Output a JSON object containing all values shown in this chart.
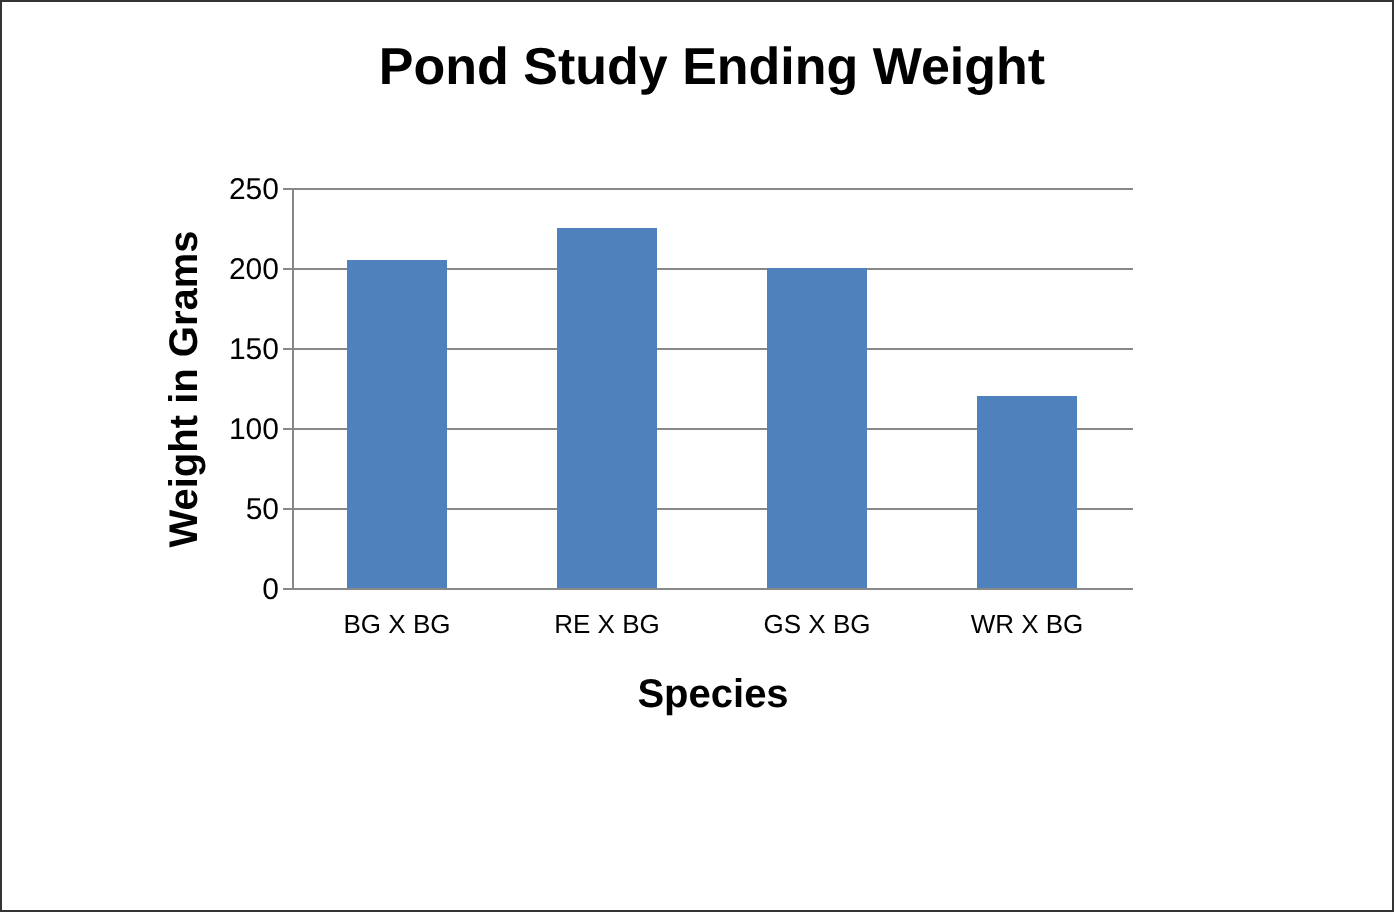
{
  "chart_data": {
    "type": "bar",
    "title": "Pond Study Ending Weight",
    "xlabel": "Species",
    "ylabel": "Weight in Grams",
    "categories": [
      "BG X  BG",
      "RE X BG",
      "GS X BG",
      "WR X BG"
    ],
    "values": [
      205,
      225,
      200,
      120
    ],
    "color": "#4f81bd",
    "ylim": [
      0,
      250
    ],
    "yticks": [
      0,
      50,
      100,
      150,
      200,
      250
    ],
    "grid": "y"
  }
}
